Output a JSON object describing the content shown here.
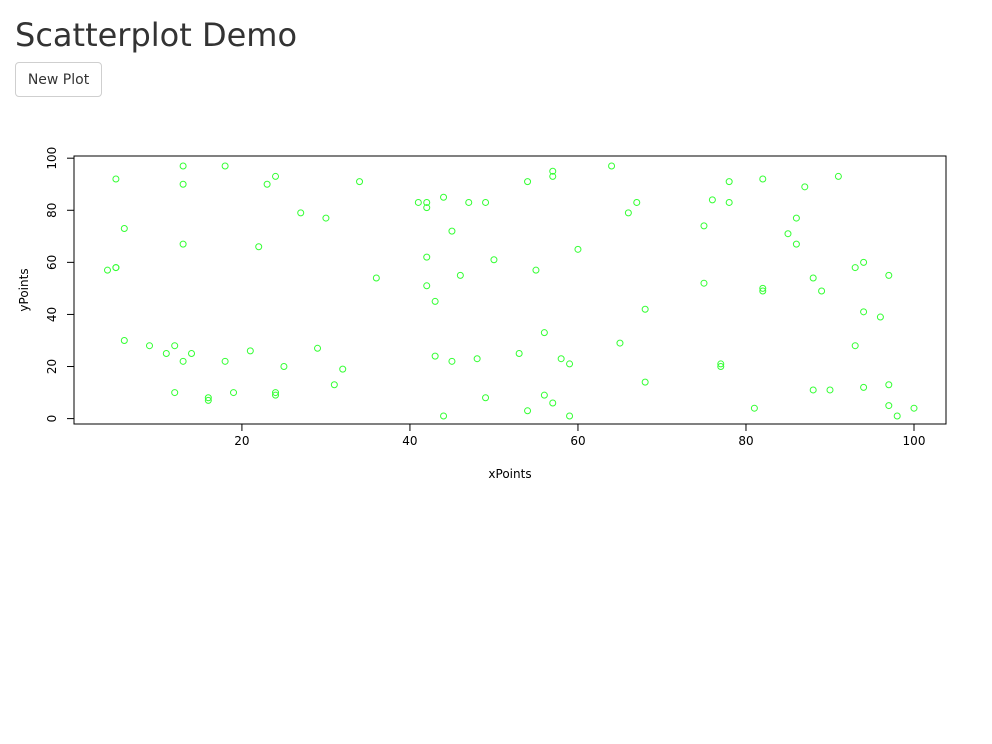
{
  "page": {
    "title": "Scatterplot Demo"
  },
  "toolbar": {
    "new_plot_label": "New Plot"
  },
  "chart_data": {
    "type": "scatter",
    "title": "",
    "xlabel": "xPoints",
    "ylabel": "yPoints",
    "xlim": [
      4,
      100
    ],
    "ylim": [
      1,
      97
    ],
    "x_ticks": [
      20,
      40,
      60,
      80,
      100
    ],
    "y_ticks": [
      0,
      20,
      40,
      60,
      80,
      100
    ],
    "grid": false,
    "legend": "none",
    "point_color": "#33ff33",
    "point_shape": "open-circle",
    "x": [
      5,
      13,
      13,
      18,
      23,
      24,
      34,
      41,
      42,
      42,
      44,
      47,
      49,
      54,
      57,
      57,
      64,
      67,
      66,
      76,
      78,
      78,
      82,
      87,
      91,
      6,
      13,
      22,
      27,
      30,
      5,
      4,
      5,
      36,
      42,
      43,
      45,
      46,
      50,
      55,
      60,
      42,
      75,
      75,
      85,
      86,
      86,
      93,
      94,
      97,
      88,
      89,
      82,
      82,
      94,
      96,
      68,
      6,
      9,
      11,
      12,
      14,
      13,
      18,
      21,
      25,
      29,
      32,
      31,
      12,
      16,
      16,
      19,
      24,
      24,
      43,
      45,
      48,
      49,
      44,
      53,
      54,
      56,
      56,
      57,
      58,
      59,
      59,
      65,
      68,
      77,
      77,
      81,
      88,
      90,
      93,
      94,
      97,
      97,
      98,
      100
    ],
    "y": [
      92,
      97,
      90,
      97,
      90,
      93,
      91,
      83,
      81,
      83,
      85,
      83,
      83,
      91,
      93,
      95,
      97,
      83,
      79,
      84,
      91,
      83,
      92,
      89,
      93,
      73,
      67,
      66,
      79,
      77,
      58,
      57,
      58,
      54,
      62,
      45,
      72,
      55,
      61,
      57,
      65,
      51,
      74,
      52,
      71,
      77,
      67,
      58,
      60,
      55,
      54,
      49,
      50,
      49,
      41,
      39,
      42,
      30,
      28,
      25,
      28,
      25,
      22,
      22,
      26,
      20,
      27,
      19,
      13,
      10,
      8,
      7,
      10,
      10,
      9,
      24,
      22,
      23,
      8,
      1,
      25,
      3,
      33,
      9,
      6,
      23,
      21,
      1,
      29,
      14,
      21,
      20,
      4,
      11,
      11,
      28,
      12,
      13,
      5,
      1,
      4
    ]
  }
}
